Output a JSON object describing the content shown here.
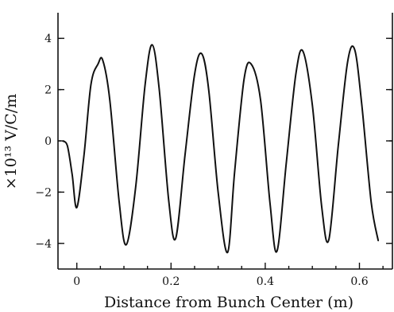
{
  "chart_data": {
    "type": "line",
    "title": "",
    "xlabel": "Distance from Bunch Center (m)",
    "ylabel": "×10¹³ V/C/m",
    "xlim": [
      -0.04,
      0.67
    ],
    "ylim": [
      -5,
      5
    ],
    "x_ticks": [
      0,
      0.2,
      0.4,
      0.6
    ],
    "x_tick_labels": [
      "0",
      "0.2",
      "0.4",
      "0.6"
    ],
    "y_ticks": [
      -4,
      -2,
      0,
      2,
      4
    ],
    "y_tick_labels": [
      "−4",
      "−2",
      "0",
      "2",
      "4"
    ],
    "grid": false,
    "series": [
      {
        "x": [
          -0.03,
          -0.02,
          -0.01,
          0.0,
          0.015,
          0.03,
          0.045,
          0.055,
          0.07,
          0.09,
          0.105,
          0.125,
          0.145,
          0.16,
          0.175,
          0.195,
          0.21,
          0.23,
          0.25,
          0.265,
          0.28,
          0.3,
          0.32,
          0.335,
          0.355,
          0.37,
          0.39,
          0.41,
          0.425,
          0.445,
          0.465,
          0.48,
          0.5,
          0.52,
          0.535,
          0.555,
          0.575,
          0.59,
          0.605,
          0.625,
          0.64
        ],
        "y": [
          0.0,
          -0.2,
          -1.3,
          -2.6,
          -0.6,
          2.2,
          3.0,
          3.15,
          1.6,
          -2.4,
          -4.05,
          -1.8,
          2.2,
          3.75,
          2.0,
          -2.3,
          -3.8,
          -0.5,
          2.6,
          3.4,
          2.0,
          -2.0,
          -4.35,
          -1.2,
          2.4,
          3.0,
          1.6,
          -2.4,
          -4.3,
          -0.8,
          2.6,
          3.5,
          1.4,
          -2.6,
          -3.85,
          -0.2,
          3.1,
          3.55,
          1.4,
          -2.4,
          -3.9
        ]
      }
    ]
  }
}
